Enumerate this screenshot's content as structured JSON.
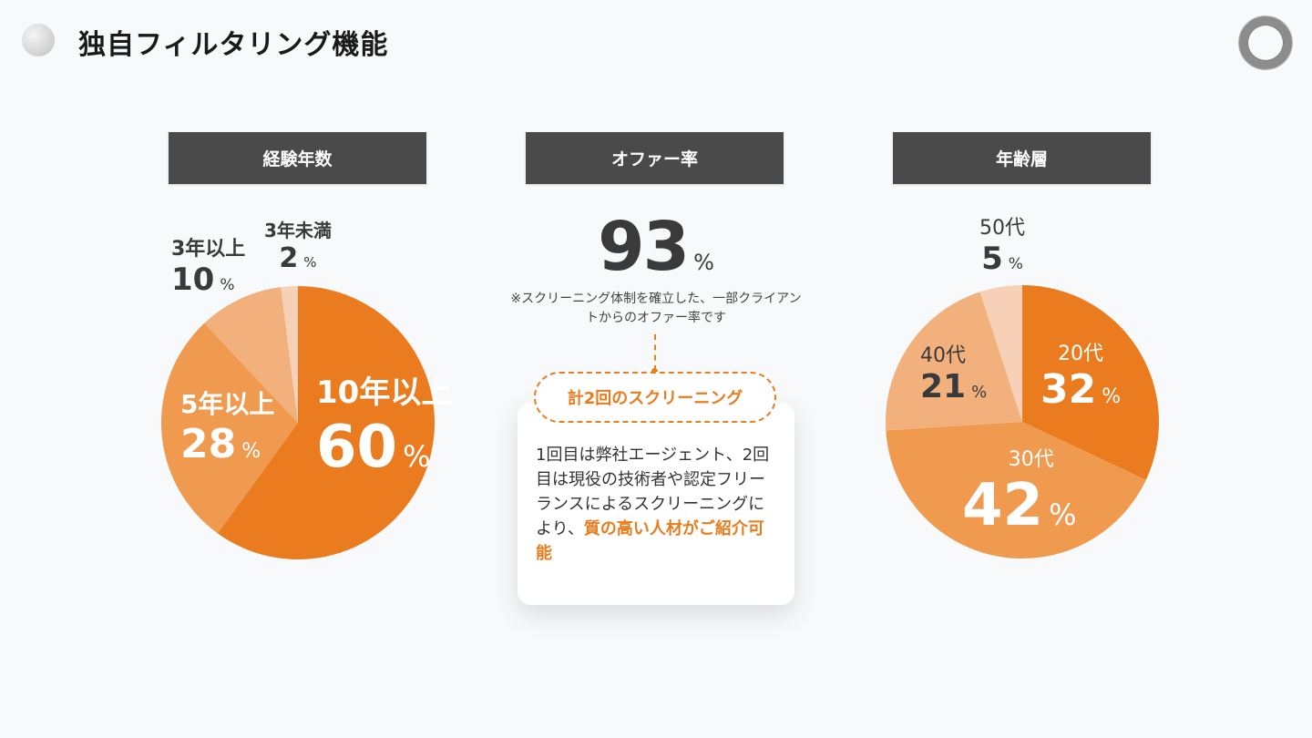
{
  "page": {
    "title": "独自フィルタリング機能"
  },
  "icons": {
    "title_dot": "gray-circle-icon",
    "logo": "ring-logo-icon"
  },
  "colors": {
    "accent": "#e97c1d",
    "header_bg": "#4a4a4a"
  },
  "experience": {
    "header": "経験年数",
    "percent_symbol": "%"
  },
  "offer": {
    "header": "オファー率",
    "value": "93",
    "percent_symbol": "%",
    "note": "※スクリーニング体制を確立した、一部クライアントからのオファー率です",
    "pill": "計2回のスクリーニング",
    "card_text": "1回目は弊社エージェント、2回目は現役の技術者や認定フリーランスによるスクリーニングにより、",
    "card_highlight": "質の高い人材がご紹介可能"
  },
  "age": {
    "header": "年齢層",
    "percent_symbol": "%"
  },
  "chart_data": [
    {
      "type": "pie",
      "title": "経験年数",
      "categories": [
        "10年以上",
        "5年以上",
        "3年以上",
        "3年未満"
      ],
      "values": [
        60,
        28,
        10,
        2
      ],
      "value_labels": [
        "60",
        "28",
        "10",
        "2"
      ],
      "colors": [
        "#ea7c1f",
        "#ef9a4f",
        "#f2b07c",
        "#f6d1b7"
      ]
    },
    {
      "type": "pie",
      "title": "年齢層",
      "categories": [
        "20代",
        "30代",
        "40代",
        "50代"
      ],
      "values": [
        32,
        42,
        21,
        5
      ],
      "value_labels": [
        "32",
        "42",
        "21",
        "5"
      ],
      "colors": [
        "#ea7c1f",
        "#ef9a4f",
        "#f2b07c",
        "#f6d1b7"
      ]
    }
  ]
}
